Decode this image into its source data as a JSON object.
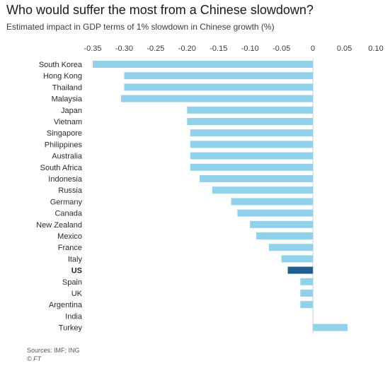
{
  "header": {
    "title": "Who would suffer the most from a Chinese slowdown?",
    "subtitle": "Estimated impact in GDP terms of 1% slowdown in Chinese growth (%)"
  },
  "footer": {
    "source": "Sources: IMF; ING",
    "credit": "© FT"
  },
  "colors": {
    "bar": "#91d1e9",
    "highlight": "#1f5f91"
  },
  "chart_data": {
    "type": "bar",
    "orientation": "horizontal",
    "title": "Who would suffer the most from a Chinese slowdown?",
    "subtitle": "Estimated impact in GDP terms of 1% slowdown in Chinese growth (%)",
    "xlim": [
      -0.35,
      0.1
    ],
    "xticks": [
      "-0.35",
      "-0.30",
      "-0.25",
      "-0.20",
      "-0.15",
      "-0.10",
      "-0.05",
      "0",
      "0.05",
      "0.10"
    ],
    "xtick_values": [
      -0.35,
      -0.3,
      -0.25,
      -0.2,
      -0.15,
      -0.1,
      -0.05,
      0,
      0.05,
      0.1
    ],
    "xaxis_position": "top",
    "grid": false,
    "highlight": "US",
    "categories": [
      "South Korea",
      "Hong Kong",
      "Thailand",
      "Malaysia",
      "Japan",
      "Vietnam",
      "Singapore",
      "Philippines",
      "Australia",
      "South Africa",
      "Indonesia",
      "Russia",
      "Germany",
      "Canada",
      "New Zealand",
      "Mexico",
      "France",
      "Italy",
      "US",
      "Spain",
      "UK",
      "Argentina",
      "India",
      "Turkey"
    ],
    "values": [
      -0.35,
      -0.3,
      -0.3,
      -0.305,
      -0.2,
      -0.2,
      -0.195,
      -0.195,
      -0.195,
      -0.195,
      -0.18,
      -0.16,
      -0.13,
      -0.12,
      -0.1,
      -0.09,
      -0.07,
      -0.05,
      -0.04,
      -0.02,
      -0.02,
      -0.02,
      0,
      0.055
    ]
  }
}
